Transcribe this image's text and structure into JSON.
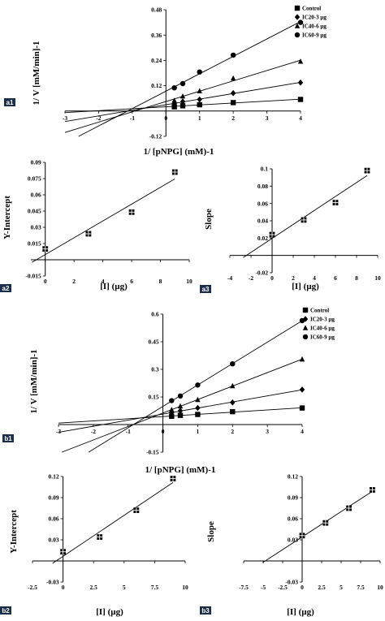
{
  "panel_labels": [
    "a1",
    "a2",
    "a3",
    "b1",
    "b2",
    "b3"
  ],
  "chart_data": [
    {
      "id": "a1",
      "type": "scatter",
      "xlabel": "1/ [pNPG] (mM)-1",
      "ylabel": "1/ V [mM/min]-1",
      "xlim": [
        -3,
        4
      ],
      "ylim": [
        -0.12,
        0.48
      ],
      "xticks": [
        -3,
        -2,
        -1,
        0,
        1,
        2,
        3,
        4
      ],
      "yticks": [
        -0.12,
        0.12,
        0.24,
        0.36,
        0.48
      ],
      "legend": "top-right",
      "series": [
        {
          "name": "Control",
          "marker": "square",
          "x": [
            0.25,
            0.5,
            1,
            2,
            4
          ],
          "y": [
            0.02,
            0.025,
            0.03,
            0.04,
            0.055
          ]
        },
        {
          "name": "IC20-3 µg",
          "marker": "diamond",
          "x": [
            0.25,
            0.5,
            1,
            2,
            4
          ],
          "y": [
            0.035,
            0.045,
            0.055,
            0.085,
            0.135
          ]
        },
        {
          "name": "IC40-6 µg",
          "marker": "triangle",
          "x": [
            0.25,
            0.5,
            1,
            2,
            4
          ],
          "y": [
            0.05,
            0.07,
            0.095,
            0.155,
            0.235
          ]
        },
        {
          "name": "IC60-9 µg",
          "marker": "circle",
          "x": [
            0.25,
            0.5,
            1,
            2,
            4
          ],
          "y": [
            0.11,
            0.13,
            0.185,
            0.265,
            0.42
          ]
        }
      ]
    },
    {
      "id": "a2",
      "type": "scatter",
      "xlabel": "[I] (µg)",
      "ylabel": "Y-Intercept",
      "xlim": [
        -1,
        10
      ],
      "ylim": [
        -0.015,
        0.09
      ],
      "xticks": [
        0,
        2,
        4,
        6,
        8,
        10
      ],
      "yticks": [
        -0.015,
        0.015,
        0.03,
        0.045,
        0.06,
        0.075,
        0.09
      ],
      "series": [
        {
          "marker": "square",
          "x": [
            0,
            3,
            6,
            9
          ],
          "y": [
            0.01,
            0.024,
            0.044,
            0.081
          ]
        }
      ]
    },
    {
      "id": "a3",
      "type": "scatter",
      "xlabel": "[I] (µg)",
      "ylabel": "Slope",
      "xlim": [
        -4,
        10
      ],
      "ylim": [
        -0.02,
        0.1
      ],
      "xticks": [
        -4,
        -2,
        0,
        2,
        4,
        6,
        8,
        10
      ],
      "yticks": [
        -0.02,
        0.02,
        0.04,
        0.06,
        0.08,
        0.1
      ],
      "series": [
        {
          "marker": "square",
          "x": [
            0,
            3,
            6,
            9
          ],
          "y": [
            0.024,
            0.041,
            0.061,
            0.098
          ]
        }
      ]
    },
    {
      "id": "b1",
      "type": "scatter",
      "xlabel": "1/ [pNPG] (mM)-1",
      "ylabel": "1/ V [mM/min]-1",
      "xlim": [
        -3,
        4
      ],
      "ylim": [
        -0.15,
        0.6
      ],
      "xticks": [
        -3,
        -2,
        -1,
        0,
        1,
        2,
        3,
        4
      ],
      "yticks": [
        -0.15,
        0.15,
        0.3,
        0.45,
        0.6
      ],
      "legend": "top-right",
      "series": [
        {
          "name": "Control",
          "marker": "square",
          "x": [
            0.25,
            0.5,
            1,
            2,
            4
          ],
          "y": [
            0.045,
            0.05,
            0.055,
            0.07,
            0.09
          ]
        },
        {
          "name": "IC20-3 µg",
          "marker": "diamond",
          "x": [
            0.25,
            0.5,
            1,
            2,
            4
          ],
          "y": [
            0.065,
            0.075,
            0.09,
            0.12,
            0.19
          ]
        },
        {
          "name": "IC40-6 µg",
          "marker": "triangle",
          "x": [
            0.25,
            0.5,
            1,
            2,
            4
          ],
          "y": [
            0.08,
            0.1,
            0.135,
            0.21,
            0.355
          ]
        },
        {
          "name": "IC60-9 µg",
          "marker": "circle",
          "x": [
            0.25,
            0.5,
            1,
            2,
            4
          ],
          "y": [
            0.13,
            0.155,
            0.215,
            0.33,
            0.565
          ]
        }
      ]
    },
    {
      "id": "b2",
      "type": "scatter",
      "xlabel": "[I] (µg)",
      "ylabel": "Y-Intercept",
      "xlim": [
        -2.5,
        10
      ],
      "ylim": [
        -0.03,
        0.12
      ],
      "xticks": [
        -2.5,
        0,
        2.5,
        5,
        7.5,
        10
      ],
      "yticks": [
        -0.03,
        0.03,
        0.06,
        0.09,
        0.12
      ],
      "series": [
        {
          "marker": "square",
          "x": [
            0,
            3,
            6,
            9
          ],
          "y": [
            0.013,
            0.034,
            0.072,
            0.117
          ]
        }
      ]
    },
    {
      "id": "b3",
      "type": "scatter",
      "xlabel": "[I] (µg)",
      "ylabel": "Slope",
      "xlim": [
        -7.5,
        10
      ],
      "ylim": [
        -0.03,
        0.12
      ],
      "xticks": [
        -7.5,
        -5,
        -2.5,
        0,
        2.5,
        5,
        7.5,
        10
      ],
      "yticks": [
        -0.03,
        0.03,
        0.06,
        0.09,
        0.12
      ],
      "series": [
        {
          "marker": "square",
          "x": [
            0,
            3,
            6,
            9
          ],
          "y": [
            0.036,
            0.054,
            0.075,
            0.101
          ]
        }
      ]
    }
  ]
}
